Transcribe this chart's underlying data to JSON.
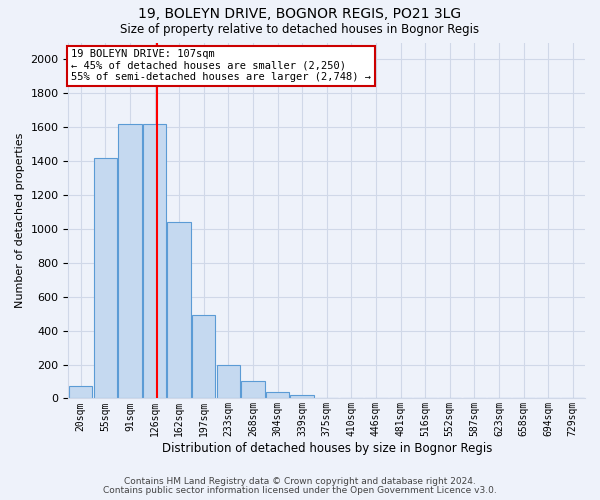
{
  "title1": "19, BOLEYN DRIVE, BOGNOR REGIS, PO21 3LG",
  "title2": "Size of property relative to detached houses in Bognor Regis",
  "xlabel": "Distribution of detached houses by size in Bognor Regis",
  "ylabel": "Number of detached properties",
  "bin_labels": [
    "20sqm",
    "55sqm",
    "91sqm",
    "126sqm",
    "162sqm",
    "197sqm",
    "233sqm",
    "268sqm",
    "304sqm",
    "339sqm",
    "375sqm",
    "410sqm",
    "446sqm",
    "481sqm",
    "516sqm",
    "552sqm",
    "587sqm",
    "623sqm",
    "658sqm",
    "694sqm",
    "729sqm"
  ],
  "bar_heights": [
    75,
    1420,
    1620,
    1620,
    1040,
    490,
    200,
    105,
    35,
    20,
    5,
    5,
    0,
    0,
    0,
    0,
    0,
    0,
    0,
    0,
    0
  ],
  "bar_color": "#c5d9f0",
  "bar_edge_color": "#5b9bd5",
  "red_line_x": 3,
  "annotation_line1": "19 BOLEYN DRIVE: 107sqm",
  "annotation_line2": "← 45% of detached houses are smaller (2,250)",
  "annotation_line3": "55% of semi-detached houses are larger (2,748) →",
  "annotation_box_color": "#ffffff",
  "annotation_box_edge": "#cc0000",
  "ylim": [
    0,
    2100
  ],
  "yticks": [
    0,
    200,
    400,
    600,
    800,
    1000,
    1200,
    1400,
    1600,
    1800,
    2000
  ],
  "footer1": "Contains HM Land Registry data © Crown copyright and database right 2024.",
  "footer2": "Contains public sector information licensed under the Open Government Licence v3.0.",
  "background_color": "#eef2fa",
  "grid_color": "#d0d8e8",
  "plot_bg_color": "#eef2fa"
}
